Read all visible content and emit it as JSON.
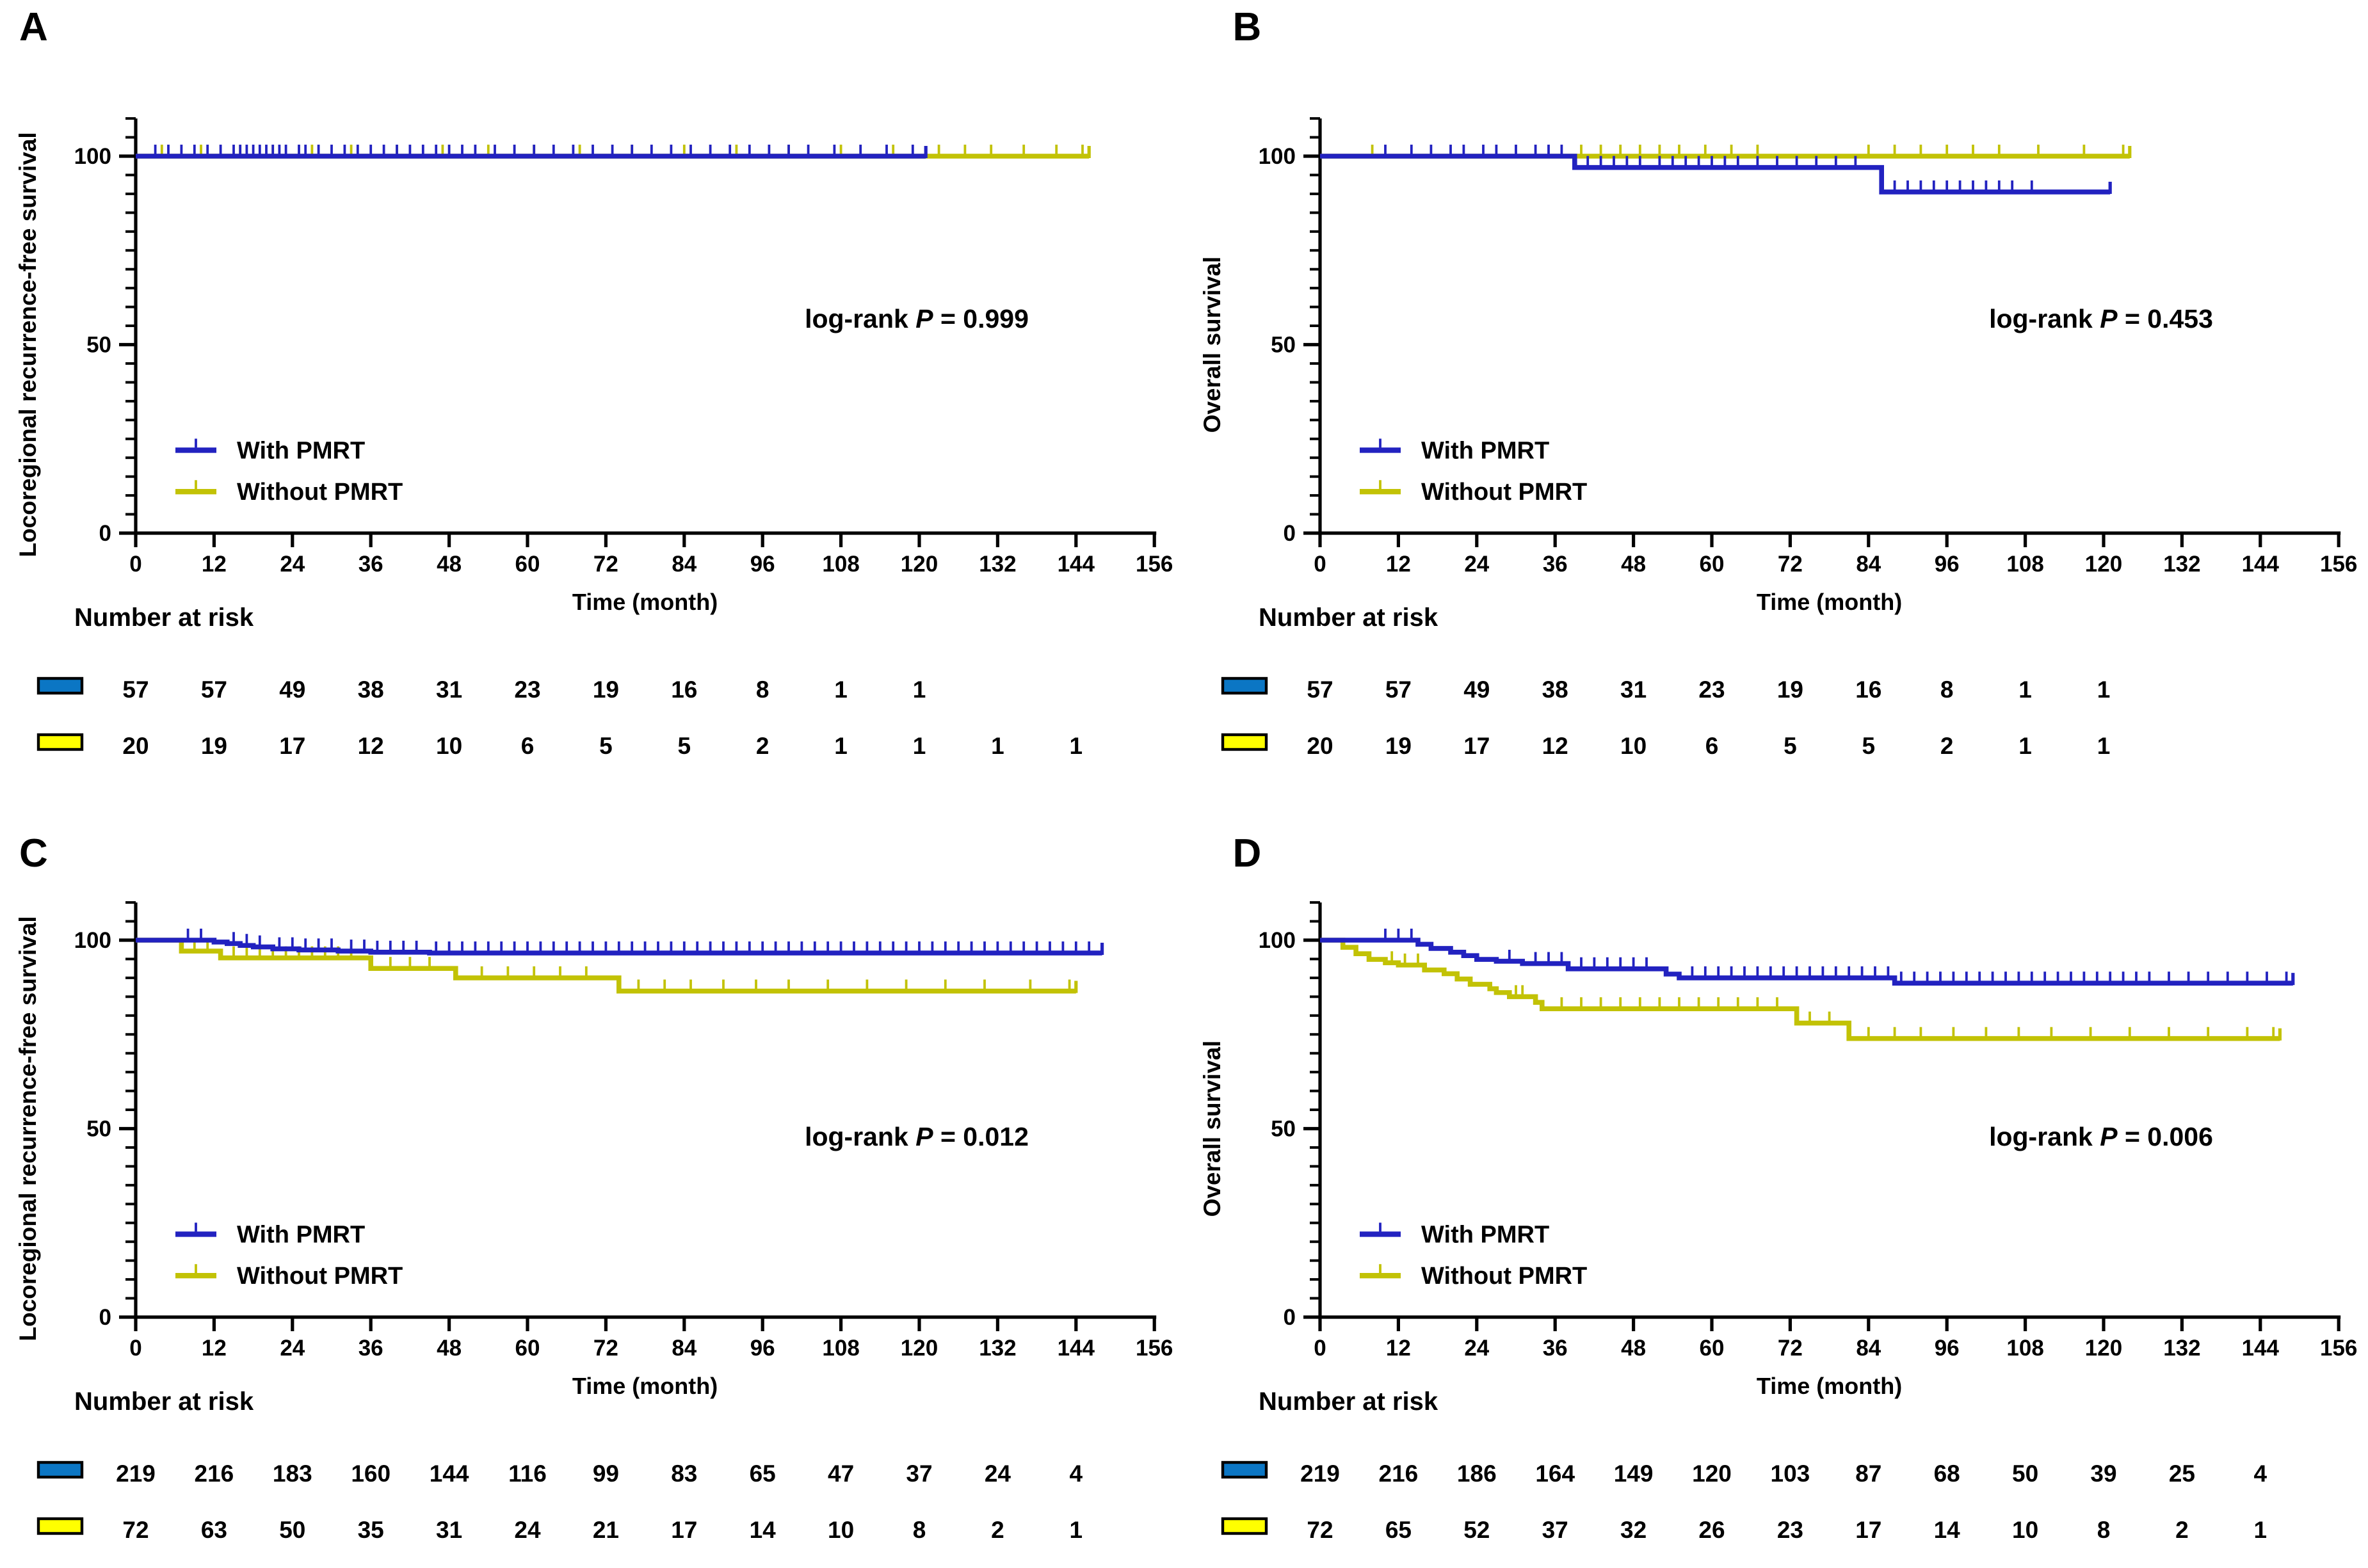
{
  "figure": {
    "background": "#ffffff",
    "text_color": "#000000",
    "curve_color_with_pmrt": "#2222c0",
    "curve_color_without_pmrt": "#c2c205",
    "risk_swatch_with_pmrt": "#0b76c4",
    "risk_swatch_without_pmrt": "#ffff00",
    "risk_swatch_border": "#000000",
    "legend_with_label": "With PMRT",
    "legend_without_label": "Without PMRT",
    "risk_header": "Number at risk",
    "x_axis_label": "Time (month)",
    "x_ticks": [
      0,
      12,
      24,
      36,
      48,
      60,
      72,
      84,
      96,
      108,
      120,
      132,
      144,
      156
    ],
    "y_ticks_labeled": [
      0,
      50,
      100
    ],
    "y_minor_step": 5,
    "y_axis_top": 110
  },
  "chart_data": [
    {
      "type": "line",
      "subtype": "kaplan-meier-step",
      "title_letter": "A",
      "ylabel": "Locoregional recurrence-free survival",
      "xlabel": "Time (month)",
      "xlim": [
        0,
        156
      ],
      "ylim": [
        0,
        110
      ],
      "legend_position": "lower-left-inside",
      "logrank": {
        "prefix": "log-rank ",
        "p": "P",
        "rest": " = 0.999",
        "value": "0.999",
        "level": 54.5
      },
      "series": [
        {
          "name": "Without PMRT",
          "color_key": "without",
          "steps": [
            [
              0,
              100
            ],
            [
              146,
              100
            ]
          ],
          "censor_months": [
            4,
            10,
            16,
            21,
            27,
            33,
            40,
            47,
            54,
            61,
            68,
            76,
            84,
            92,
            100,
            108,
            116,
            123,
            127,
            131,
            136,
            141,
            145
          ]
        },
        {
          "name": "With PMRT",
          "color_key": "with",
          "steps": [
            [
              0,
              100
            ],
            [
              121,
              100
            ]
          ],
          "censor_months": [
            3,
            5,
            7,
            9,
            11,
            13,
            15,
            16,
            17,
            18,
            19,
            20,
            21,
            22,
            23,
            25,
            26,
            28,
            30,
            32,
            34,
            36,
            38,
            40,
            42,
            44,
            46,
            48,
            50,
            52,
            55,
            58,
            61,
            64,
            67,
            70,
            73,
            76,
            79,
            82,
            85,
            88,
            91,
            94,
            97,
            100,
            103,
            107,
            111,
            115,
            119
          ]
        }
      ],
      "number_at_risk": {
        "months": [
          0,
          12,
          24,
          36,
          48,
          60,
          72,
          84,
          96,
          108,
          120,
          132,
          144
        ],
        "rows": [
          {
            "name": "With PMRT",
            "color_key": "with",
            "counts": [
              57,
              57,
              49,
              38,
              31,
              23,
              19,
              16,
              8,
              1,
              1
            ]
          },
          {
            "name": "Without PMRT",
            "color_key": "without",
            "counts": [
              20,
              19,
              17,
              12,
              10,
              6,
              5,
              5,
              2,
              1,
              1,
              1,
              1
            ]
          }
        ]
      }
    },
    {
      "type": "line",
      "subtype": "kaplan-meier-step",
      "title_letter": "B",
      "ylabel": "Overall survival",
      "xlabel": "Time (month)",
      "xlim": [
        0,
        156
      ],
      "ylim": [
        0,
        110
      ],
      "legend_position": "lower-left-inside",
      "logrank": {
        "prefix": "log-rank ",
        "p": "P",
        "rest": " = 0.453",
        "value": "0.453",
        "level": 54.5
      },
      "series": [
        {
          "name": "Without PMRT",
          "color_key": "without",
          "steps": [
            [
              0,
              100
            ],
            [
              124,
              100
            ]
          ],
          "censor_months": [
            8,
            40,
            43,
            46,
            49,
            52,
            55,
            59,
            63,
            67,
            84,
            88,
            92,
            96,
            100,
            104,
            110,
            117,
            123
          ]
        },
        {
          "name": "With PMRT",
          "color_key": "with",
          "steps": [
            [
              0,
              100
            ],
            [
              39,
              100
            ],
            [
              39,
              97
            ],
            [
              86,
              97
            ],
            [
              86,
              90.5
            ],
            [
              121,
              90.5
            ]
          ],
          "censor_months": [
            10,
            14,
            17,
            20,
            22,
            25,
            27,
            30,
            33,
            35,
            37,
            41,
            43,
            45,
            47,
            49,
            52,
            54,
            56,
            58,
            60,
            62,
            64,
            67,
            70,
            73,
            76,
            79,
            82,
            88,
            90,
            92,
            94,
            96,
            98,
            100,
            102,
            104,
            106,
            109
          ]
        }
      ],
      "number_at_risk": {
        "months": [
          0,
          12,
          24,
          36,
          48,
          60,
          72,
          84,
          96,
          108,
          120,
          132,
          144
        ],
        "rows": [
          {
            "name": "With PMRT",
            "color_key": "with",
            "counts": [
              57,
              57,
              49,
              38,
              31,
              23,
              19,
              16,
              8,
              1,
              1
            ]
          },
          {
            "name": "Without PMRT",
            "color_key": "without",
            "counts": [
              20,
              19,
              17,
              12,
              10,
              6,
              5,
              5,
              2,
              1,
              1
            ]
          }
        ]
      }
    },
    {
      "type": "line",
      "subtype": "kaplan-meier-step",
      "title_letter": "C",
      "ylabel": "Locoregional recurrence-free survival",
      "xlabel": "Time (month)",
      "xlim": [
        0,
        156
      ],
      "ylim": [
        0,
        110
      ],
      "legend_position": "lower-left-inside",
      "logrank": {
        "prefix": "log-rank ",
        "p": "P",
        "rest": " = 0.012",
        "value": "0.012",
        "level": 45.5
      },
      "series": [
        {
          "name": "Without PMRT",
          "color_key": "without",
          "steps": [
            [
              0,
              100
            ],
            [
              7,
              100
            ],
            [
              7,
              97.1
            ],
            [
              13,
              97.1
            ],
            [
              13,
              95.3
            ],
            [
              36,
              95.3
            ],
            [
              36,
              92.5
            ],
            [
              49,
              92.5
            ],
            [
              49,
              90
            ],
            [
              74,
              90
            ],
            [
              74,
              86.5
            ],
            [
              144,
              86.5
            ]
          ],
          "censor_months": [
            9,
            11,
            15,
            17,
            19,
            21,
            23,
            25,
            27,
            29,
            31,
            33,
            39,
            42,
            45,
            53,
            57,
            61,
            65,
            69,
            77,
            81,
            85,
            90,
            95,
            100,
            106,
            112,
            118,
            124,
            130,
            137,
            143
          ]
        },
        {
          "name": "With PMRT",
          "color_key": "with",
          "steps": [
            [
              0,
              100
            ],
            [
              12,
              100
            ],
            [
              12,
              99.5
            ],
            [
              14,
              99.5
            ],
            [
              14,
              99.1
            ],
            [
              16,
              99.1
            ],
            [
              16,
              98.6
            ],
            [
              18,
              98.6
            ],
            [
              18,
              98.2
            ],
            [
              21,
              98.2
            ],
            [
              21,
              97.7
            ],
            [
              25,
              97.7
            ],
            [
              25,
              97.4
            ],
            [
              31,
              97.4
            ],
            [
              31,
              97.1
            ],
            [
              36,
              97.1
            ],
            [
              36,
              96.8
            ],
            [
              45,
              96.8
            ],
            [
              45,
              96.6
            ],
            [
              148,
              96.6
            ]
          ],
          "censor_months": [
            8,
            10,
            15,
            17,
            19,
            22,
            24,
            26,
            28,
            30,
            33,
            35,
            37,
            39,
            41,
            43,
            46,
            48,
            50,
            52,
            54,
            56,
            58,
            60,
            62,
            64,
            66,
            68,
            70,
            72,
            74,
            76,
            78,
            80,
            82,
            84,
            86,
            88,
            90,
            92,
            94,
            96,
            98,
            100,
            102,
            104,
            106,
            108,
            110,
            112,
            114,
            116,
            118,
            120,
            122,
            124,
            126,
            128,
            130,
            132,
            134,
            136,
            138,
            140,
            142,
            144,
            146
          ]
        }
      ],
      "number_at_risk": {
        "months": [
          0,
          12,
          24,
          36,
          48,
          60,
          72,
          84,
          96,
          108,
          120,
          132,
          144
        ],
        "rows": [
          {
            "name": "With PMRT",
            "color_key": "with",
            "counts": [
              219,
              216,
              183,
              160,
              144,
              116,
              99,
              83,
              65,
              47,
              37,
              24,
              4
            ]
          },
          {
            "name": "Without PMRT",
            "color_key": "without",
            "counts": [
              72,
              63,
              50,
              35,
              31,
              24,
              21,
              17,
              14,
              10,
              8,
              2,
              1
            ]
          }
        ]
      }
    },
    {
      "type": "line",
      "subtype": "kaplan-meier-step",
      "title_letter": "D",
      "ylabel": "Overall survival",
      "xlabel": "Time (month)",
      "xlim": [
        0,
        156
      ],
      "ylim": [
        0,
        110
      ],
      "legend_position": "lower-left-inside",
      "logrank": {
        "prefix": "log-rank ",
        "p": "P",
        "rest": " = 0.006",
        "value": "0.006",
        "level": 45.5
      },
      "series": [
        {
          "name": "Without PMRT",
          "color_key": "without",
          "steps": [
            [
              0,
              100
            ],
            [
              3.5,
              100
            ],
            [
              3.5,
              98.1
            ],
            [
              5.5,
              98.1
            ],
            [
              5.5,
              96.4
            ],
            [
              7.5,
              96.4
            ],
            [
              7.5,
              94.9
            ],
            [
              10,
              94.9
            ],
            [
              10,
              94
            ],
            [
              12,
              94
            ],
            [
              12,
              93.4
            ],
            [
              16,
              93.4
            ],
            [
              16,
              92.1
            ],
            [
              19,
              92.1
            ],
            [
              19,
              91.1
            ],
            [
              21,
              91.1
            ],
            [
              21,
              89.7
            ],
            [
              23,
              89.7
            ],
            [
              23,
              88.3
            ],
            [
              26,
              88.3
            ],
            [
              26,
              87.1
            ],
            [
              27,
              87.1
            ],
            [
              27,
              86.1
            ],
            [
              29,
              86.1
            ],
            [
              29,
              85
            ],
            [
              33,
              85
            ],
            [
              33,
              83.5
            ],
            [
              34,
              83.5
            ],
            [
              34,
              81.8
            ],
            [
              73,
              81.8
            ],
            [
              73,
              78
            ],
            [
              81,
              78
            ],
            [
              81,
              73.9
            ],
            [
              147,
              73.9
            ]
          ],
          "censor_months": [
            11,
            13,
            15,
            30,
            31,
            37,
            40,
            43,
            46,
            49,
            52,
            55,
            58,
            61,
            64,
            67,
            70,
            75,
            78,
            84,
            88,
            92,
            97,
            102,
            107,
            112,
            118,
            124,
            130,
            136,
            142,
            146
          ]
        },
        {
          "name": "With PMRT",
          "color_key": "with",
          "steps": [
            [
              0,
              100
            ],
            [
              15,
              100
            ],
            [
              15,
              98.9
            ],
            [
              17,
              98.9
            ],
            [
              17,
              97.8
            ],
            [
              20,
              97.8
            ],
            [
              20,
              96.8
            ],
            [
              22,
              96.8
            ],
            [
              22,
              95.9
            ],
            [
              24,
              95.9
            ],
            [
              24,
              94.9
            ],
            [
              27,
              94.9
            ],
            [
              27,
              94.4
            ],
            [
              31,
              94.4
            ],
            [
              31,
              93.8
            ],
            [
              38,
              93.8
            ],
            [
              38,
              92.4
            ],
            [
              53,
              92.4
            ],
            [
              53,
              91
            ],
            [
              55,
              91
            ],
            [
              55,
              90
            ],
            [
              88,
              90
            ],
            [
              88,
              88.6
            ],
            [
              149,
              88.6
            ]
          ],
          "censor_months": [
            10,
            12,
            14,
            29,
            33,
            35,
            37,
            40,
            42,
            44,
            46,
            48,
            50,
            57,
            59,
            61,
            63,
            65,
            67,
            69,
            71,
            73,
            75,
            77,
            79,
            81,
            83,
            85,
            87,
            89,
            91,
            93,
            95,
            97,
            99,
            101,
            103,
            105,
            107,
            109,
            111,
            113,
            115,
            117,
            119,
            121,
            123,
            125,
            127,
            130,
            133,
            136,
            139,
            142,
            145,
            148
          ]
        }
      ],
      "number_at_risk": {
        "months": [
          0,
          12,
          24,
          36,
          48,
          60,
          72,
          84,
          96,
          108,
          120,
          132,
          144
        ],
        "rows": [
          {
            "name": "With PMRT",
            "color_key": "with",
            "counts": [
              219,
              216,
              186,
              164,
              149,
              120,
              103,
              87,
              68,
              50,
              39,
              25,
              4
            ]
          },
          {
            "name": "Without PMRT",
            "color_key": "without",
            "counts": [
              72,
              65,
              52,
              37,
              32,
              26,
              23,
              17,
              14,
              10,
              8,
              2,
              1
            ]
          }
        ]
      }
    }
  ]
}
